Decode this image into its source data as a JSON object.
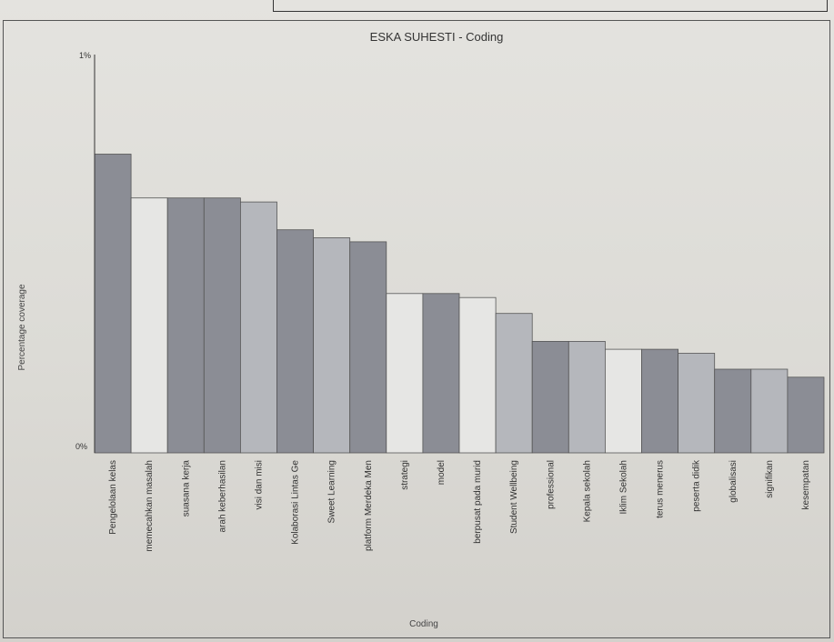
{
  "chart_data": {
    "type": "bar",
    "title": "ESKA SUHESTI - Coding",
    "xlabel": "Coding",
    "ylabel": "Percentage coverage",
    "ylim": [
      0,
      1
    ],
    "y_tick_labels": [
      "0%",
      "1%"
    ],
    "grid": false,
    "legend": "none",
    "categories": [
      "Pengelolaan kelas",
      "memecahkan masalah",
      "suasana kerja",
      "arah keberhasilan",
      "visi dan misi",
      "Kolaborasi Lintas Ge",
      "Sweet Learning",
      "platform Merdeka Men",
      "strategi",
      "model",
      "berpusat pada murid",
      "Student Wellbeing",
      "professional",
      "Kepala sekolah",
      "Iklim Sekolah",
      "terus menerus",
      "peserta didik",
      "globalisasi",
      "signifikan",
      "kesempatan"
    ],
    "values": [
      0.75,
      0.64,
      0.64,
      0.64,
      0.63,
      0.56,
      0.54,
      0.53,
      0.4,
      0.4,
      0.39,
      0.35,
      0.28,
      0.28,
      0.26,
      0.26,
      0.25,
      0.21,
      0.21,
      0.19
    ],
    "colors": {
      "dark": "#8b8d95",
      "medium": "#b5b7bc",
      "light": "#e6e6e4",
      "axis": "#333333"
    },
    "color_pattern": [
      "dark",
      "light",
      "dark",
      "dark",
      "medium",
      "dark",
      "medium",
      "dark",
      "light",
      "dark",
      "light",
      "medium",
      "dark",
      "medium",
      "light",
      "dark",
      "medium",
      "dark",
      "medium",
      "dark"
    ]
  }
}
